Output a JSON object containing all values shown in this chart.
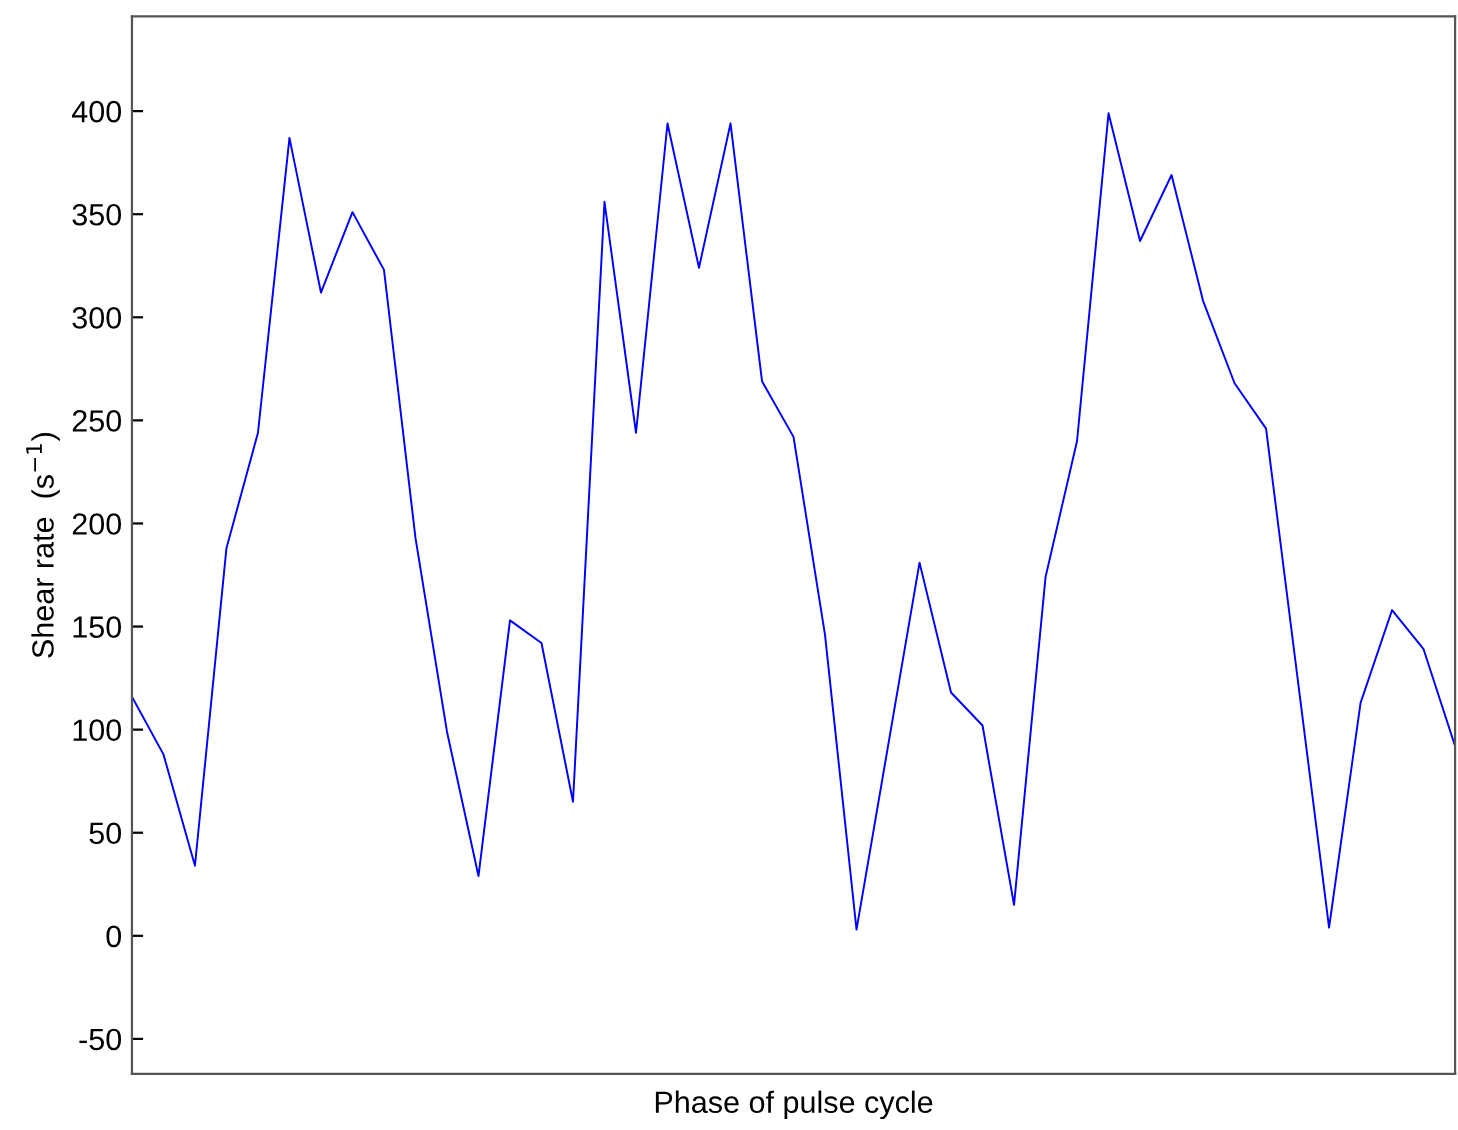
{
  "chart_data": {
    "type": "line",
    "xlabel": "Phase of pulse cycle",
    "ylabel": "Shear rate  (s$^{−1}$)",
    "categories": [
      null,
      null,
      null,
      null,
      null,
      null,
      null,
      null,
      null,
      null,
      null,
      null,
      null,
      null,
      null,
      null,
      null,
      null,
      null,
      null,
      null,
      null,
      null,
      null,
      null,
      null,
      null,
      null,
      null,
      null,
      null,
      null,
      null,
      null,
      null,
      null,
      null,
      null,
      null,
      null,
      null,
      null,
      null
    ],
    "series": [
      {
        "color": "#0000ff",
        "values": [
          116,
          88,
          34,
          188,
          244,
          387,
          312,
          351,
          323,
          193,
          99,
          29,
          153,
          142,
          65,
          356,
          244,
          394,
          324,
          394,
          269,
          242,
          146,
          3,
          92,
          181,
          118,
          102,
          15,
          174,
          240,
          399,
          337,
          369,
          308,
          268,
          246,
          125,
          4,
          113,
          158,
          139,
          92
        ]
      }
    ],
    "ylim": [
      -67,
      446
    ],
    "yticks": [
      -50,
      0,
      50,
      100,
      150,
      200,
      250,
      300,
      350,
      400
    ],
    "tick_labels": "y",
    "grid": false,
    "marker": "none",
    "line_style": "solid"
  }
}
